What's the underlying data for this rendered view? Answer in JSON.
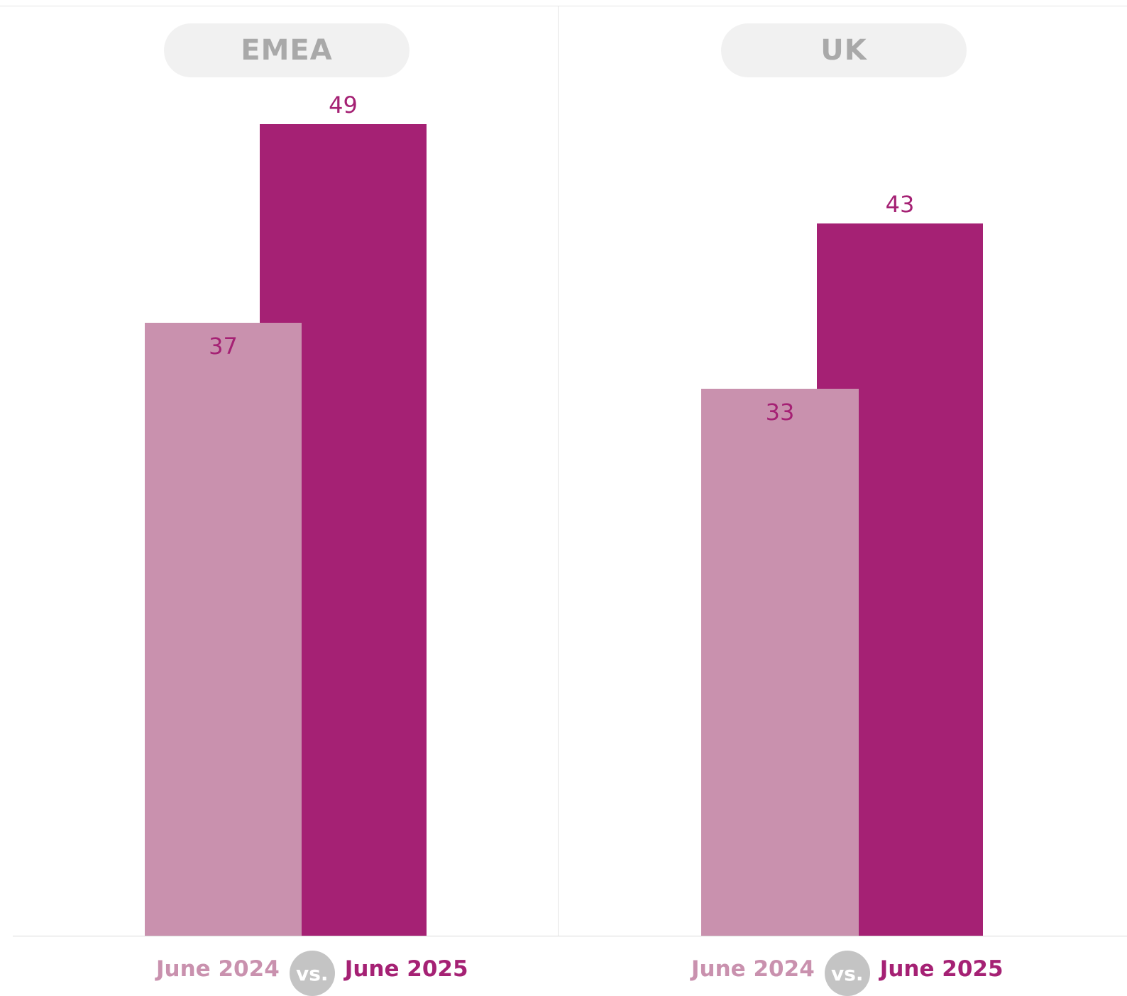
{
  "chart_data": [
    {
      "type": "bar",
      "region": "EMEA",
      "series": [
        {
          "name": "June 2024",
          "value": 37
        },
        {
          "name": "June 2025",
          "value": 49
        }
      ],
      "legend": {
        "series_a": "June 2024",
        "separator": "vs.",
        "series_b": "June 2025"
      },
      "ylim": [
        0,
        55
      ]
    },
    {
      "type": "bar",
      "region": "UK",
      "series": [
        {
          "name": "June 2024",
          "value": 33
        },
        {
          "name": "June 2025",
          "value": 43
        }
      ],
      "legend": {
        "series_a": "June 2024",
        "separator": "vs.",
        "series_b": "June 2025"
      },
      "ylim": [
        0,
        55
      ]
    }
  ],
  "colors": {
    "june_2024": "#c991ae",
    "june_2025": "#a52174",
    "value_label": "#a52174",
    "pill_text": "#a9a9a9",
    "pill_bg": "#f1f1f1",
    "vs_badge": "#c4c4c4"
  }
}
